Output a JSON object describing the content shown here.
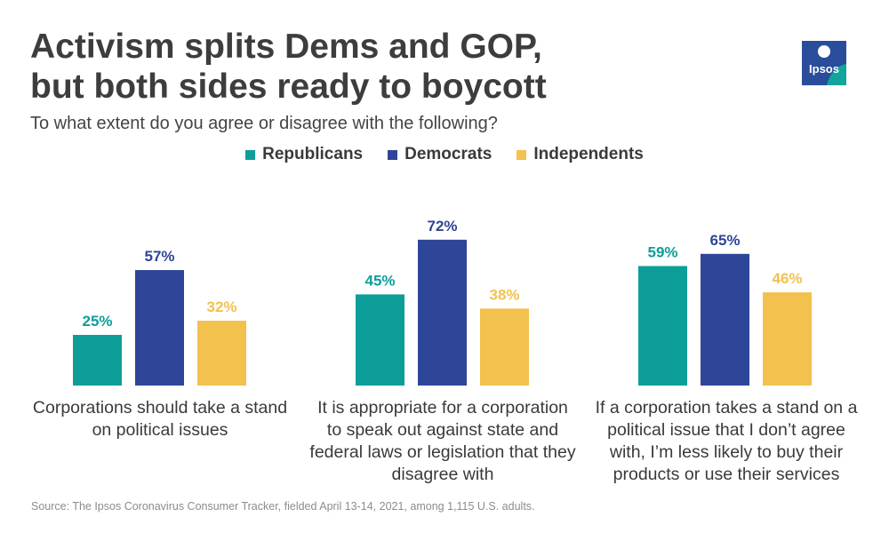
{
  "header": {
    "title_line1": "Activism splits Dems and GOP,",
    "title_line2": "but both sides ready to boycott",
    "subtitle": "To what extent do you agree or disagree with the following?"
  },
  "logo": {
    "text": "Ipsos",
    "icon": "ipsos-logo-icon"
  },
  "colors": {
    "republicans": "#0d9e9a",
    "democrats": "#2e4598",
    "independents": "#f2c14e",
    "logo_bg": "#2a4d9b",
    "logo_accent": "#12a59b"
  },
  "chart_data": {
    "type": "bar",
    "categories": [
      "Corporations should take a stand on political issues",
      "It is appropriate for a corporation to speak out against state and federal laws or legislation that they disagree with",
      "If a corporation takes a stand on a political issue that I don’t agree with, I’m less likely to buy their products or use their services"
    ],
    "category_lines": [
      [
        "Corporations should take a stand",
        "on political issues"
      ],
      [
        "It is appropriate for a corporation",
        "to speak out against state and",
        "federal laws or legislation that they",
        "disagree with"
      ],
      [
        "If a corporation takes a stand on a",
        "political issue that I don’t agree",
        "with, I’m less likely to buy their",
        "products or use their services"
      ]
    ],
    "series": [
      {
        "name": "Republicans",
        "values": [
          25,
          45,
          59
        ],
        "labels": [
          "25%",
          "45%",
          "59%"
        ]
      },
      {
        "name": "Democrats",
        "values": [
          57,
          72,
          65
        ],
        "labels": [
          "57%",
          "72%",
          "65%"
        ]
      },
      {
        "name": "Independents",
        "values": [
          32,
          38,
          46
        ],
        "labels": [
          "32%",
          "38%",
          "46%"
        ]
      }
    ],
    "unit": "%",
    "ylim": [
      0,
      100
    ],
    "legend": "top-center",
    "grid": false,
    "title": "Activism splits Dems and GOP, but both sides ready to boycott"
  },
  "footer": {
    "source": "Source: The Ipsos Coronavirus Consumer Tracker, fielded April 13-14, 2021, among 1,115 U.S. adults."
  }
}
